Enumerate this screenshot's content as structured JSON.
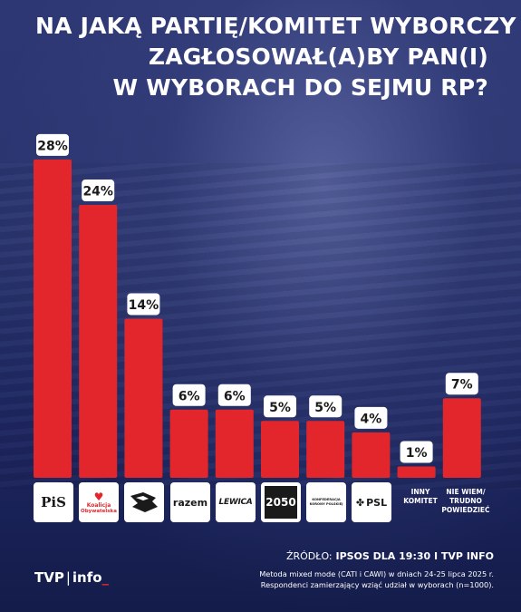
{
  "title_lines": [
    "NA JAKĄ PARTIĘ/KOMITET WYBORCZY",
    "ZAGŁOSOWAŁ(A)BY PAN(I)",
    "W WYBORACH DO SEJMU RP?"
  ],
  "chart_data": {
    "type": "bar",
    "categories": [
      "PiS",
      "Koalicja Obywatelska",
      "Polska 2050 / PSL-like logo",
      "razem",
      "LEWICA",
      "2050",
      "KONFEDERACJA KORONY POLSKIEJ",
      "PSL",
      "INNY KOMITET",
      "NIE WIEM/ TRUDNO POWIEDZIEĆ"
    ],
    "values": [
      28,
      24,
      14,
      6,
      6,
      5,
      5,
      4,
      1,
      7
    ],
    "value_labels": [
      "28%",
      "24%",
      "14%",
      "6%",
      "6%",
      "5%",
      "5%",
      "4%",
      "1%",
      "7%"
    ],
    "ylim": [
      0,
      30
    ],
    "grid": false,
    "bar_color": "#e3262b",
    "label_bg_color": "#ffffff",
    "label_text_color": "#1a1a1a"
  },
  "logos": {
    "pis": "PiS",
    "ko_line1": "Koalicja",
    "ko_line2": "Obywatelska",
    "razem": "razem",
    "lewica": "LEWICA",
    "p2050": "2050",
    "kkp_line1": "KONFEDERACJA",
    "kkp_line2": "KORONY POLSKIEJ",
    "psl": "PSL"
  },
  "other_labels": {
    "inny": [
      "INNY",
      "KOMITET"
    ],
    "niewiem": [
      "NIE WIEM/",
      "TRUDNO",
      "POWIEDZIEĆ"
    ]
  },
  "source": {
    "prefix": "ŹRÓDŁO:",
    "text": "IPSOS DLA 19:30 I TVP INFO"
  },
  "method_lines": [
    "Metoda mixed mode (CATI i CAWI) w dniach 24-25 lipca 2025 r.",
    "Respondenci zamierzający wziąć udział w wyborach (n=1000)."
  ],
  "brand": {
    "left": "TVP",
    "sep": "|",
    "right": "info",
    "cursor": "_"
  },
  "colors": {
    "accent": "#e3262b",
    "background": "#1d2660"
  }
}
